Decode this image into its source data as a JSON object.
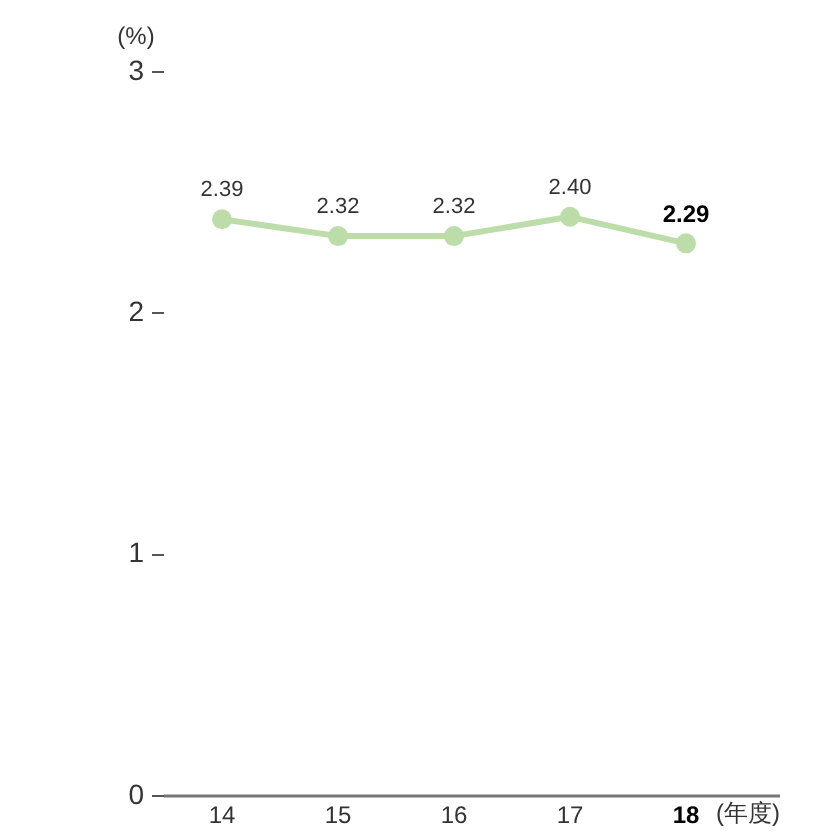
{
  "chart_data": {
    "type": "line",
    "ylabel": "(%)",
    "xlabel": "(年度)",
    "categories": [
      "14",
      "15",
      "16",
      "17",
      "18"
    ],
    "values": [
      2.39,
      2.32,
      2.32,
      2.4,
      2.29
    ],
    "value_labels": [
      "2.39",
      "2.32",
      "2.32",
      "2.40",
      "2.29"
    ],
    "color": "#bcdda9",
    "ylim": [
      0,
      3
    ],
    "yticks": [
      0,
      1,
      2,
      3
    ],
    "marker": "circle",
    "line_style": "solid"
  }
}
